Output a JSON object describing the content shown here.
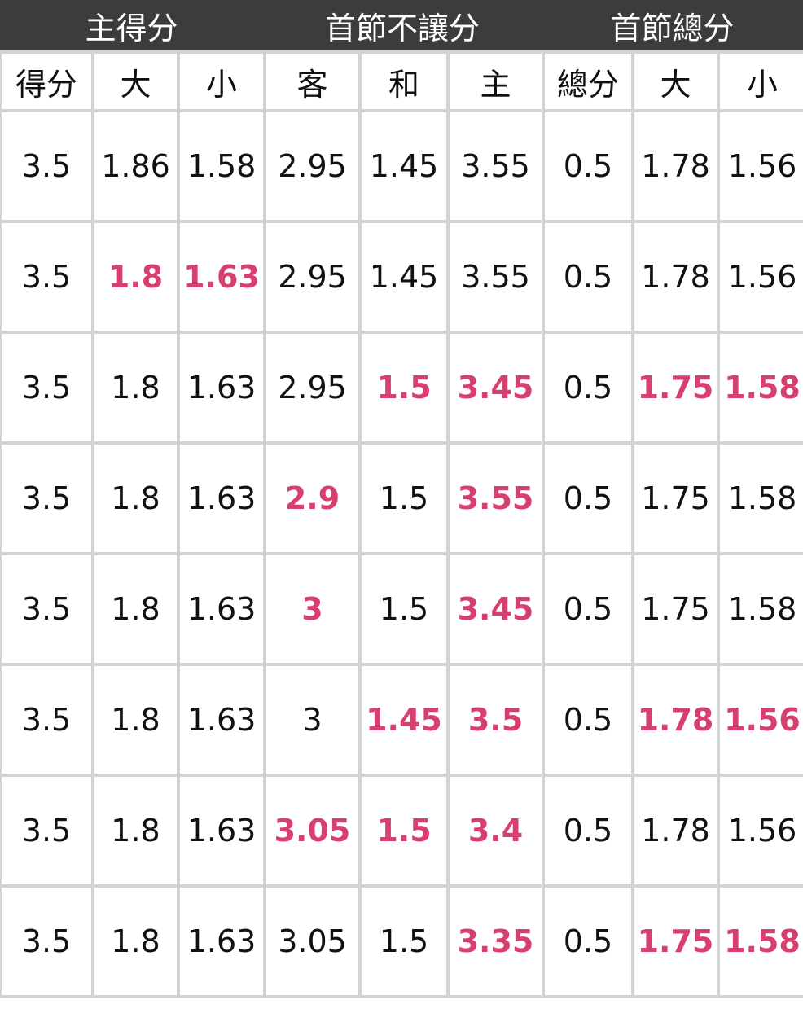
{
  "accent_color": "#d63f6e",
  "groups": [
    "主得分",
    "首節不讓分",
    "首節總分"
  ],
  "columns": [
    "得分",
    "大",
    "小",
    "客",
    "和",
    "主",
    "總分",
    "大",
    "小"
  ],
  "rows": [
    {
      "values": [
        "3.5",
        "1.86",
        "1.58",
        "2.95",
        "1.45",
        "3.55",
        "0.5",
        "1.78",
        "1.56"
      ],
      "highlight": []
    },
    {
      "values": [
        "3.5",
        "1.8",
        "1.63",
        "2.95",
        "1.45",
        "3.55",
        "0.5",
        "1.78",
        "1.56"
      ],
      "highlight": [
        1,
        2
      ]
    },
    {
      "values": [
        "3.5",
        "1.8",
        "1.63",
        "2.95",
        "1.5",
        "3.45",
        "0.5",
        "1.75",
        "1.58"
      ],
      "highlight": [
        4,
        5,
        7,
        8
      ]
    },
    {
      "values": [
        "3.5",
        "1.8",
        "1.63",
        "2.9",
        "1.5",
        "3.55",
        "0.5",
        "1.75",
        "1.58"
      ],
      "highlight": [
        3,
        5
      ]
    },
    {
      "values": [
        "3.5",
        "1.8",
        "1.63",
        "3",
        "1.5",
        "3.45",
        "0.5",
        "1.75",
        "1.58"
      ],
      "highlight": [
        3,
        5
      ]
    },
    {
      "values": [
        "3.5",
        "1.8",
        "1.63",
        "3",
        "1.45",
        "3.5",
        "0.5",
        "1.78",
        "1.56"
      ],
      "highlight": [
        4,
        5,
        7,
        8
      ]
    },
    {
      "values": [
        "3.5",
        "1.8",
        "1.63",
        "3.05",
        "1.5",
        "3.4",
        "0.5",
        "1.78",
        "1.56"
      ],
      "highlight": [
        3,
        4,
        5
      ]
    },
    {
      "values": [
        "3.5",
        "1.8",
        "1.63",
        "3.05",
        "1.5",
        "3.35",
        "0.5",
        "1.75",
        "1.58"
      ],
      "highlight": [
        5,
        7,
        8
      ]
    }
  ]
}
